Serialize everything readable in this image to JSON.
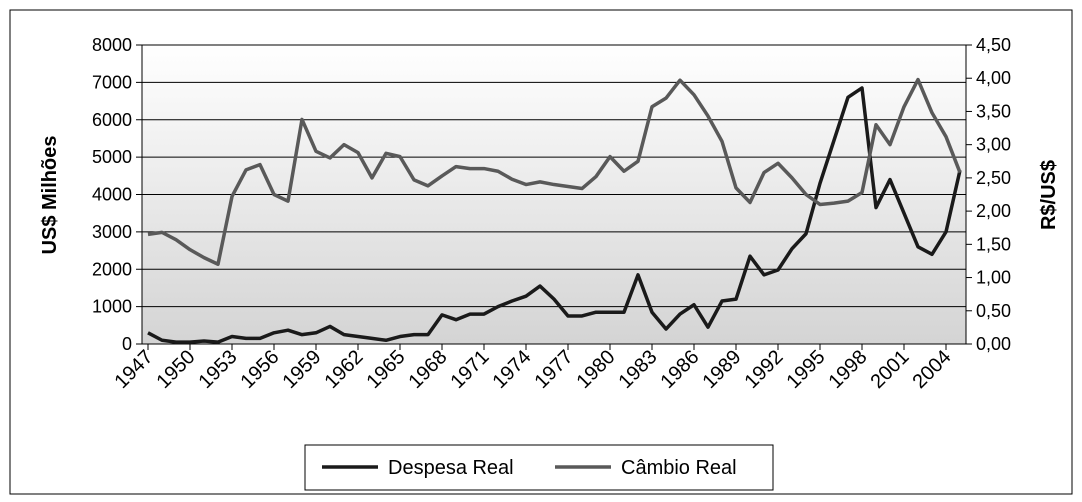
{
  "chart_data": {
    "type": "line",
    "categories": [
      "1947",
      null,
      null,
      "1950",
      null,
      null,
      "1953",
      null,
      null,
      "1956",
      null,
      null,
      "1959",
      null,
      null,
      "1962",
      null,
      null,
      "1965",
      null,
      null,
      "1968",
      null,
      null,
      "1971",
      null,
      null,
      "1974",
      null,
      null,
      "1977",
      null,
      null,
      "1980",
      null,
      null,
      "1983",
      null,
      null,
      "1986",
      null,
      null,
      "1989",
      null,
      null,
      "1992",
      null,
      null,
      "1995",
      null,
      null,
      "1998",
      null,
      null,
      "2001",
      null,
      null,
      "2004",
      null
    ],
    "series": [
      {
        "name": "Despesa Real",
        "color": "#1a1a1a",
        "values": [
          300,
          100,
          50,
          50,
          80,
          50,
          200,
          150,
          150,
          300,
          370,
          250,
          300,
          470,
          250,
          200,
          150,
          100,
          200,
          250,
          250,
          780,
          650,
          800,
          800,
          1000,
          1150,
          1280,
          1550,
          1200,
          750,
          750,
          850,
          850,
          850,
          1850,
          850,
          400,
          800,
          1050,
          450,
          1150,
          1200,
          2350,
          1850,
          1980,
          2550,
          2950,
          4300,
          5450,
          6600,
          6850,
          3650,
          4400,
          3500,
          2600,
          2400,
          3000,
          4650
        ]
      },
      {
        "name": "Câmbio Real",
        "color": "#595959",
        "axis": "y2",
        "values": [
          1.65,
          1.68,
          1.57,
          1.42,
          1.3,
          1.2,
          2.22,
          2.62,
          2.7,
          2.25,
          2.15,
          3.38,
          2.9,
          2.8,
          3.0,
          2.88,
          2.5,
          2.87,
          2.82,
          2.47,
          2.38,
          2.53,
          2.67,
          2.64,
          2.64,
          2.6,
          2.48,
          2.4,
          2.44,
          2.4,
          2.37,
          2.34,
          2.52,
          2.82,
          2.6,
          2.75,
          3.57,
          3.7,
          3.97,
          3.75,
          3.43,
          3.05,
          2.35,
          2.13,
          2.58,
          2.72,
          2.5,
          2.25,
          2.1,
          2.12,
          2.15,
          2.28,
          3.3,
          3.0,
          3.57,
          3.98,
          3.48,
          3.12,
          2.58
        ]
      }
    ],
    "ylabel": "US$ Milhões",
    "y2label": "R$/US$",
    "ylim": [
      0,
      8000
    ],
    "yticks": [
      0,
      1000,
      2000,
      3000,
      4000,
      5000,
      6000,
      7000,
      8000
    ],
    "y2lim": [
      0,
      4.5
    ],
    "y2ticks": [
      {
        "value": 0,
        "label": "0,00"
      },
      {
        "value": 0.5,
        "label": "0,50"
      },
      {
        "value": 1,
        "label": "1,00"
      },
      {
        "value": 1.5,
        "label": "1,50"
      },
      {
        "value": 2,
        "label": "2,00"
      },
      {
        "value": 2.5,
        "label": "2,50"
      },
      {
        "value": 3,
        "label": "3,00"
      },
      {
        "value": 3.5,
        "label": "3,50"
      },
      {
        "value": 4,
        "label": "4,00"
      },
      {
        "value": 4.5,
        "label": "4,50"
      }
    ],
    "grid": true,
    "legend": "bottom"
  }
}
